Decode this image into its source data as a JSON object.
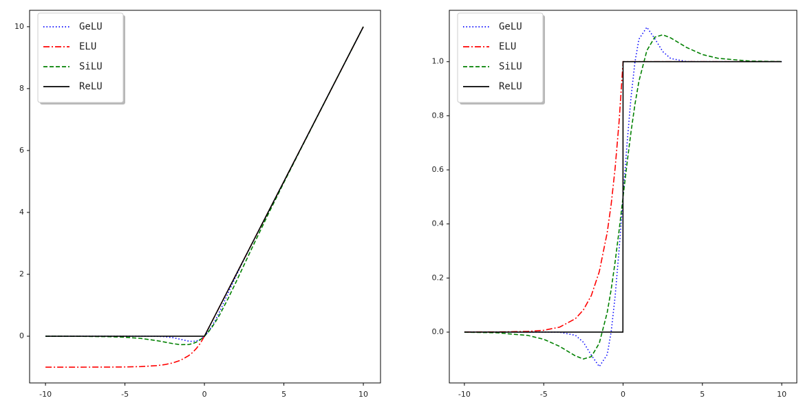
{
  "chart_data": [
    {
      "type": "line",
      "x": [
        -10,
        -8,
        -6,
        -5,
        -4,
        -3,
        -2.5,
        -2,
        -1.5,
        -1,
        -0.75,
        -0.5,
        -0.25,
        -0.01,
        0,
        0.25,
        0.5,
        0.75,
        1,
        1.5,
        2,
        2.5,
        3,
        4,
        5,
        6,
        8,
        10
      ],
      "series": [
        {
          "name": "GeLU",
          "color": "#0000ff",
          "linestyle": "dotted",
          "values": [
            0,
            0,
            0,
            0,
            -0.0001,
            -0.004,
            -0.0155,
            -0.0455,
            -0.1002,
            -0.1587,
            -0.17,
            -0.1543,
            -0.1003,
            -0.005,
            0,
            0.1497,
            0.3457,
            0.58,
            0.8413,
            1.3998,
            1.9545,
            2.4845,
            2.996,
            4,
            5,
            6,
            8,
            10
          ]
        },
        {
          "name": "ELU",
          "color": "#ff0000",
          "linestyle": "dashdot",
          "values": [
            -0.99995,
            -0.9997,
            -0.9975,
            -0.9933,
            -0.9817,
            -0.9502,
            -0.9179,
            -0.8647,
            -0.7769,
            -0.6321,
            -0.5276,
            -0.3935,
            -0.2212,
            -0.01,
            0,
            0.25,
            0.5,
            0.75,
            1,
            1.5,
            2,
            2.5,
            3,
            4,
            5,
            6,
            8,
            10
          ]
        },
        {
          "name": "SiLU",
          "color": "#008000",
          "linestyle": "dashed",
          "values": [
            -0.0005,
            -0.0027,
            -0.0148,
            -0.0335,
            -0.0719,
            -0.1423,
            -0.1897,
            -0.2384,
            -0.2736,
            -0.2689,
            -0.2406,
            -0.1888,
            -0.1094,
            -0.005,
            0,
            0.1406,
            0.3112,
            0.5094,
            0.7311,
            1.2264,
            1.7616,
            2.3103,
            2.8577,
            3.9281,
            4.9665,
            5.9852,
            7.9973,
            9.9995
          ]
        },
        {
          "name": "ReLU",
          "color": "#000000",
          "linestyle": "solid",
          "values": [
            0,
            0,
            0,
            0,
            0,
            0,
            0,
            0,
            0,
            0,
            0,
            0,
            0,
            0,
            0,
            0.25,
            0.5,
            0.75,
            1,
            1.5,
            2,
            2.5,
            3,
            4,
            5,
            6,
            8,
            10
          ]
        }
      ],
      "xlim": [
        -11,
        11.08
      ],
      "ylim": [
        -1.51,
        10.53
      ],
      "xticks": [
        -10,
        -5,
        0,
        5,
        10
      ],
      "yticks": [
        0,
        2,
        4,
        6,
        8,
        10
      ],
      "legend": "upper left"
    },
    {
      "type": "line",
      "x": [
        -10,
        -8,
        -6,
        -5,
        -4,
        -3,
        -2.5,
        -2,
        -1.5,
        -1,
        -0.75,
        -0.5,
        -0.25,
        -0.01,
        0,
        0.25,
        0.5,
        0.75,
        1,
        1.5,
        2,
        2.5,
        3,
        4,
        5,
        6,
        8,
        10
      ],
      "series": [
        {
          "name": "GeLU",
          "color": "#0000ff",
          "linestyle": "dotted",
          "values": [
            0,
            0,
            0,
            0,
            -0.0005,
            -0.0119,
            -0.0375,
            -0.0852,
            -0.1275,
            -0.0833,
            0.0008,
            0.1325,
            0.3046,
            0.492,
            0.5,
            0.6954,
            0.8675,
            0.9992,
            1.0833,
            1.1275,
            1.0852,
            1.0375,
            1.0119,
            1.0005,
            1,
            1,
            1,
            1
          ]
        },
        {
          "name": "ELU",
          "color": "#ff0000",
          "linestyle": "dashdot",
          "values": [
            4.54e-05,
            0.000335,
            0.00248,
            0.0067,
            0.0183,
            0.0498,
            0.0821,
            0.1353,
            0.2231,
            0.3679,
            0.4724,
            0.6065,
            0.7788,
            0.99,
            1,
            1,
            1,
            1,
            1,
            1,
            1,
            1,
            1,
            1,
            1,
            1,
            1,
            1
          ]
        },
        {
          "name": "SiLU",
          "color": "#008000",
          "linestyle": "dashed",
          "values": [
            -0.0004,
            -0.0023,
            -0.0123,
            -0.0265,
            -0.0527,
            -0.0881,
            -0.0994,
            -0.0908,
            -0.0413,
            0.0723,
            0.1574,
            0.26,
            0.3762,
            0.495,
            0.5,
            0.6237,
            0.74,
            0.8426,
            0.9277,
            1.0413,
            1.0908,
            1.0994,
            1.0881,
            1.0527,
            1.0265,
            1.0123,
            1.0023,
            1.0004
          ]
        },
        {
          "name": "ReLU",
          "color": "#000000",
          "linestyle": "solid",
          "values": [
            0,
            0,
            0,
            0,
            0,
            0,
            0,
            0,
            0,
            0,
            0,
            0,
            0,
            0,
            1,
            1,
            1,
            1,
            1,
            1,
            1,
            1,
            1,
            1,
            1,
            1,
            1,
            1
          ]
        }
      ],
      "xlim": [
        -10.95,
        10.95
      ],
      "ylim": [
        -0.188,
        1.19
      ],
      "xticks": [
        -10,
        -5,
        0,
        5,
        10
      ],
      "yticks": [
        {
          "value": 0,
          "label": "0.0"
        },
        {
          "value": 0.2,
          "label": "0.2"
        },
        {
          "value": 0.4,
          "label": "0.4"
        },
        {
          "value": 0.6,
          "label": "0.6"
        },
        {
          "value": 0.8,
          "label": "0.8"
        },
        {
          "value": 1,
          "label": "1.0"
        }
      ],
      "legend": "upper left"
    }
  ]
}
